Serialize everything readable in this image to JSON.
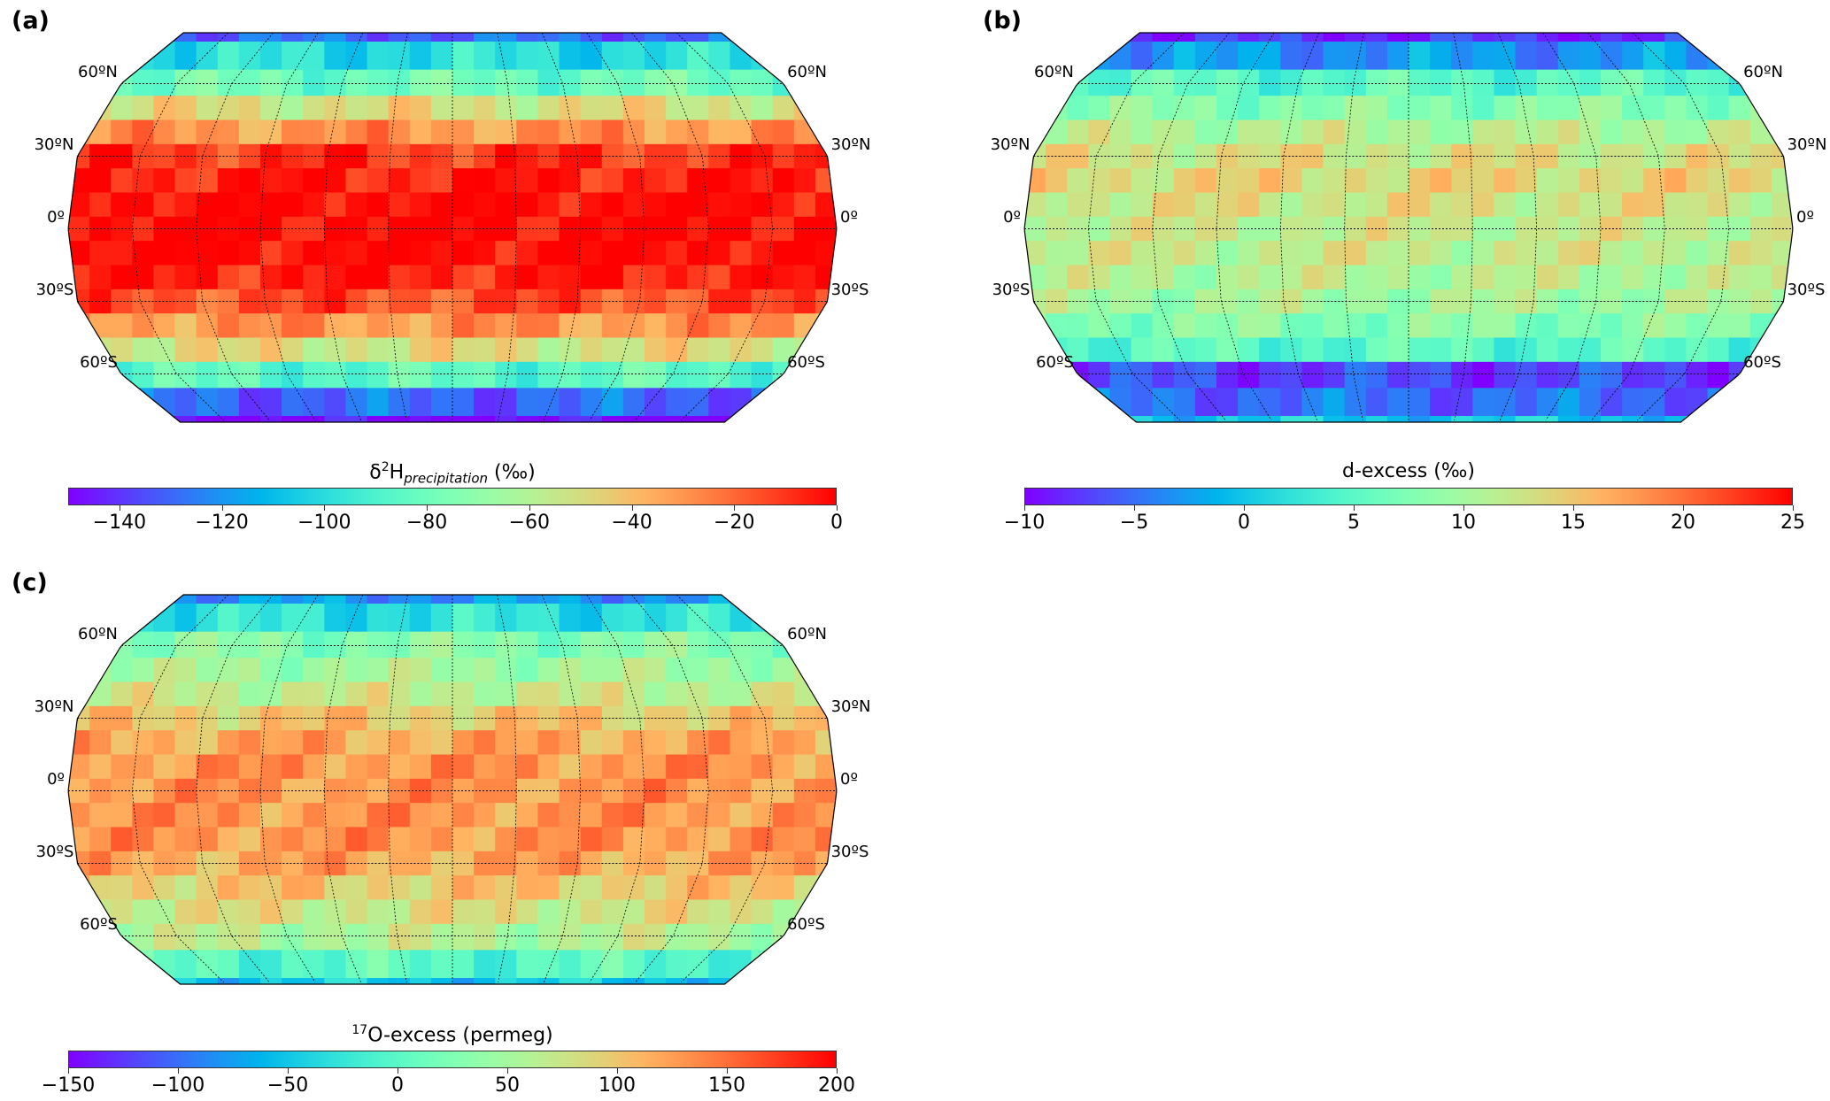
{
  "lat_labels": [
    "60ºN",
    "30ºN",
    "0º",
    "30ºS",
    "60ºS"
  ],
  "colormap": "rainbow",
  "chart_data": [
    {
      "type": "heatmap",
      "panel": "(a)",
      "title": "",
      "colorbar_label_main": "δ",
      "colorbar_label_sup": "2",
      "colorbar_label_mid": "H",
      "colorbar_label_sub": "precipitation",
      "colorbar_label_unit": " (‰)",
      "vmin": -150,
      "vmax": 0,
      "ticks": [
        "−140",
        "−120",
        "−100",
        "−80",
        "−60",
        "−40",
        "−20",
        "0"
      ],
      "tick_values": [
        -140,
        -120,
        -100,
        -80,
        -60,
        -40,
        -20,
        0
      ],
      "zonal_latitudes": [
        80,
        70,
        60,
        50,
        40,
        30,
        20,
        10,
        0,
        -10,
        -20,
        -30,
        -40,
        -50,
        -60,
        -70,
        -80
      ],
      "zonal_estimate": [
        -130,
        -100,
        -80,
        -50,
        -30,
        -10,
        -5,
        0,
        0,
        0,
        -5,
        -15,
        -30,
        -50,
        -85,
        -130,
        -150
      ]
    },
    {
      "type": "heatmap",
      "panel": "(b)",
      "colorbar_label": "d-excess (‰)",
      "vmin": -10,
      "vmax": 25,
      "ticks": [
        "−10",
        "−5",
        "0",
        "5",
        "10",
        "15",
        "20",
        "25"
      ],
      "tick_values": [
        -10,
        -5,
        0,
        5,
        10,
        15,
        20,
        25
      ],
      "zonal_latitudes": [
        80,
        70,
        60,
        50,
        40,
        30,
        20,
        10,
        0,
        -10,
        -20,
        -30,
        -40,
        -50,
        -60,
        -70,
        -80
      ],
      "zonal_estimate": [
        -8,
        -3,
        5,
        8,
        11,
        13,
        14,
        13,
        12,
        12,
        11,
        10,
        8,
        5,
        -7,
        -5,
        0
      ]
    },
    {
      "type": "heatmap",
      "panel": "(c)",
      "colorbar_label_sup": "17",
      "colorbar_label_main": "O-excess (permeg)",
      "vmin": -150,
      "vmax": 200,
      "ticks": [
        "−150",
        "−100",
        "−50",
        "0",
        "50",
        "100",
        "150",
        "200"
      ],
      "tick_values": [
        -150,
        -100,
        -50,
        0,
        50,
        100,
        150,
        200
      ],
      "zonal_latitudes": [
        80,
        70,
        60,
        50,
        40,
        30,
        20,
        10,
        0,
        -10,
        -20,
        -30,
        -40,
        -50,
        -60,
        -70,
        -80
      ],
      "zonal_estimate": [
        -80,
        -30,
        30,
        50,
        70,
        100,
        120,
        130,
        130,
        130,
        130,
        120,
        100,
        80,
        60,
        0,
        -50
      ]
    }
  ]
}
